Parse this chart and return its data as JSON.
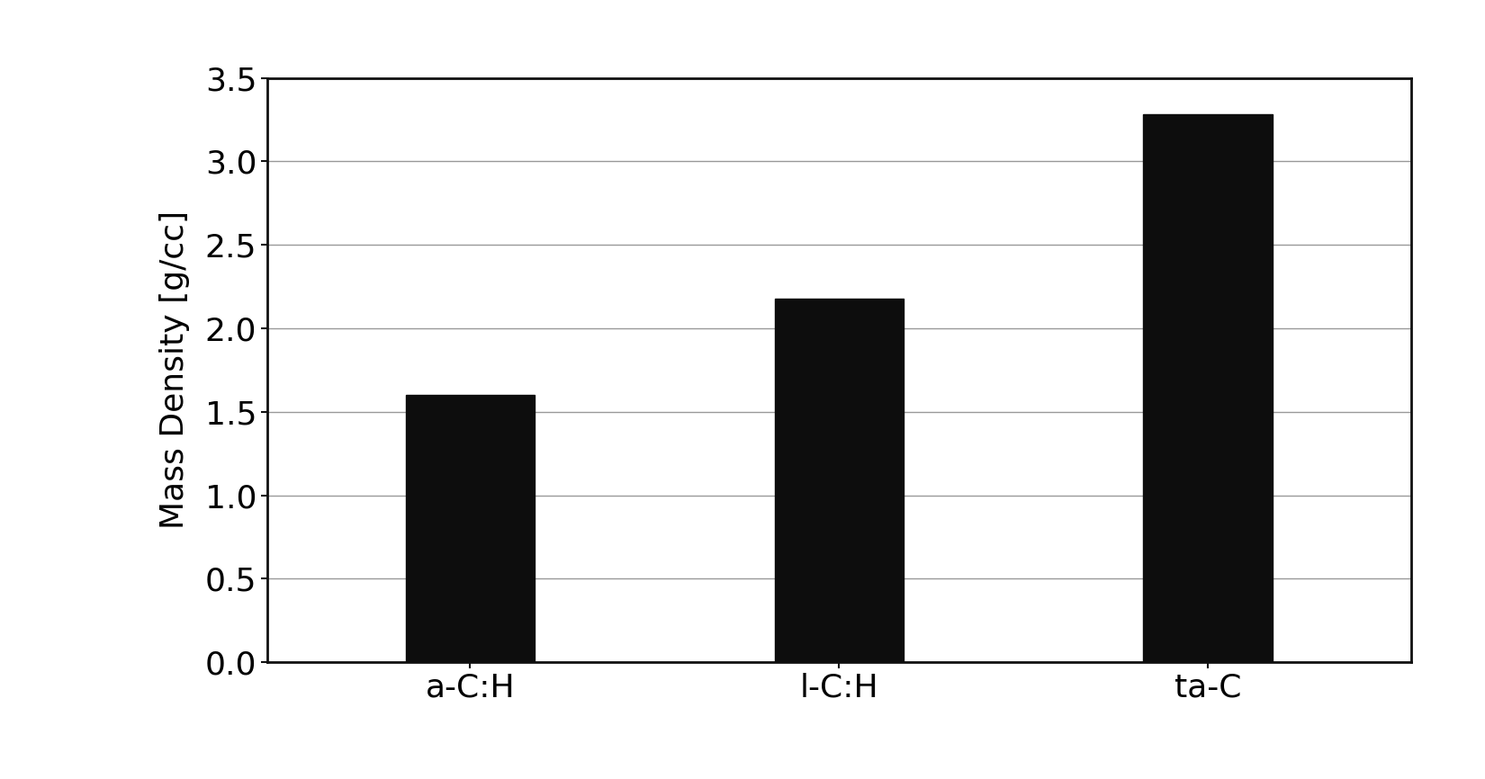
{
  "categories": [
    "a-C:H",
    "l-C:H",
    "ta-C"
  ],
  "values": [
    1.6,
    2.18,
    3.28
  ],
  "bar_color": "#0d0d0d",
  "ylabel": "Mass Density [g/cc]",
  "ylim": [
    0,
    3.5
  ],
  "yticks": [
    0.0,
    0.5,
    1.0,
    1.5,
    2.0,
    2.5,
    3.0,
    3.5
  ],
  "background_color": "#ffffff",
  "bar_width": 0.35,
  "grid_color": "#999999",
  "tick_labelsize": 26,
  "ylabel_fontsize": 26,
  "xlabel_fontsize": 26,
  "spine_color": "#111111",
  "spine_linewidth": 2.0
}
